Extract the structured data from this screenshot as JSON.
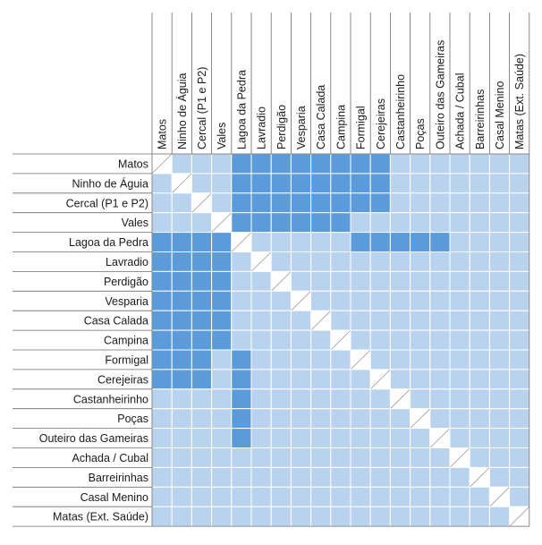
{
  "chart_data": {
    "type": "heatmap",
    "title": "",
    "labels": [
      "Matos",
      "Ninho de Águia",
      "Cercal (P1 e P2)",
      "Vales",
      "Lagoa da Pedra",
      "Lavradio",
      "Perdigão",
      "Vesparia",
      "Casa Calada",
      "Campina",
      "Formigal",
      "Cerejeiras",
      "Castanheirinho",
      "Poças",
      "Outeiro das Gameiras",
      "Achada / Cubal",
      "Barreirinhas",
      "Casal Menino",
      "Matas (Ext. Saúde)"
    ],
    "values_legend": {
      "0": "light",
      "1": "dark",
      "2": "diagonal"
    },
    "matrix": [
      [
        2,
        0,
        0,
        0,
        1,
        1,
        1,
        1,
        1,
        1,
        1,
        1,
        0,
        0,
        0,
        0,
        0,
        0,
        0
      ],
      [
        0,
        2,
        0,
        0,
        1,
        1,
        1,
        1,
        1,
        1,
        1,
        1,
        0,
        0,
        0,
        0,
        0,
        0,
        0
      ],
      [
        0,
        0,
        2,
        0,
        1,
        1,
        1,
        1,
        1,
        1,
        1,
        1,
        0,
        0,
        0,
        0,
        0,
        0,
        0
      ],
      [
        0,
        0,
        0,
        2,
        1,
        1,
        1,
        1,
        1,
        1,
        0,
        0,
        0,
        0,
        0,
        0,
        0,
        0,
        0
      ],
      [
        1,
        1,
        1,
        1,
        2,
        0,
        0,
        0,
        0,
        0,
        1,
        1,
        1,
        1,
        1,
        0,
        0,
        0,
        0
      ],
      [
        1,
        1,
        1,
        1,
        0,
        2,
        0,
        0,
        0,
        0,
        0,
        0,
        0,
        0,
        0,
        0,
        0,
        0,
        0
      ],
      [
        1,
        1,
        1,
        1,
        0,
        0,
        2,
        0,
        0,
        0,
        0,
        0,
        0,
        0,
        0,
        0,
        0,
        0,
        0
      ],
      [
        1,
        1,
        1,
        1,
        0,
        0,
        0,
        2,
        0,
        0,
        0,
        0,
        0,
        0,
        0,
        0,
        0,
        0,
        0
      ],
      [
        1,
        1,
        1,
        1,
        0,
        0,
        0,
        0,
        2,
        0,
        0,
        0,
        0,
        0,
        0,
        0,
        0,
        0,
        0
      ],
      [
        1,
        1,
        1,
        1,
        0,
        0,
        0,
        0,
        0,
        2,
        0,
        0,
        0,
        0,
        0,
        0,
        0,
        0,
        0
      ],
      [
        1,
        1,
        1,
        0,
        1,
        0,
        0,
        0,
        0,
        0,
        2,
        0,
        0,
        0,
        0,
        0,
        0,
        0,
        0
      ],
      [
        1,
        1,
        1,
        0,
        1,
        0,
        0,
        0,
        0,
        0,
        0,
        2,
        0,
        0,
        0,
        0,
        0,
        0,
        0
      ],
      [
        0,
        0,
        0,
        0,
        1,
        0,
        0,
        0,
        0,
        0,
        0,
        0,
        2,
        0,
        0,
        0,
        0,
        0,
        0
      ],
      [
        0,
        0,
        0,
        0,
        1,
        0,
        0,
        0,
        0,
        0,
        0,
        0,
        0,
        2,
        0,
        0,
        0,
        0,
        0
      ],
      [
        0,
        0,
        0,
        0,
        1,
        0,
        0,
        0,
        0,
        0,
        0,
        0,
        0,
        0,
        2,
        0,
        0,
        0,
        0
      ],
      [
        0,
        0,
        0,
        0,
        0,
        0,
        0,
        0,
        0,
        0,
        0,
        0,
        0,
        0,
        0,
        2,
        0,
        0,
        0
      ],
      [
        0,
        0,
        0,
        0,
        0,
        0,
        0,
        0,
        0,
        0,
        0,
        0,
        0,
        0,
        0,
        0,
        2,
        0,
        0
      ],
      [
        0,
        0,
        0,
        0,
        0,
        0,
        0,
        0,
        0,
        0,
        0,
        0,
        0,
        0,
        0,
        0,
        0,
        2,
        0
      ],
      [
        0,
        0,
        0,
        0,
        0,
        0,
        0,
        0,
        0,
        0,
        0,
        0,
        0,
        0,
        0,
        0,
        0,
        0,
        2
      ]
    ],
    "colors": {
      "light": "#b9d3ef",
      "dark": "#5b9bd9",
      "diagonal": "#ffffff",
      "grid": "#ffffff",
      "frame": "#6d6d6d",
      "text": "#1a1a1a"
    }
  }
}
